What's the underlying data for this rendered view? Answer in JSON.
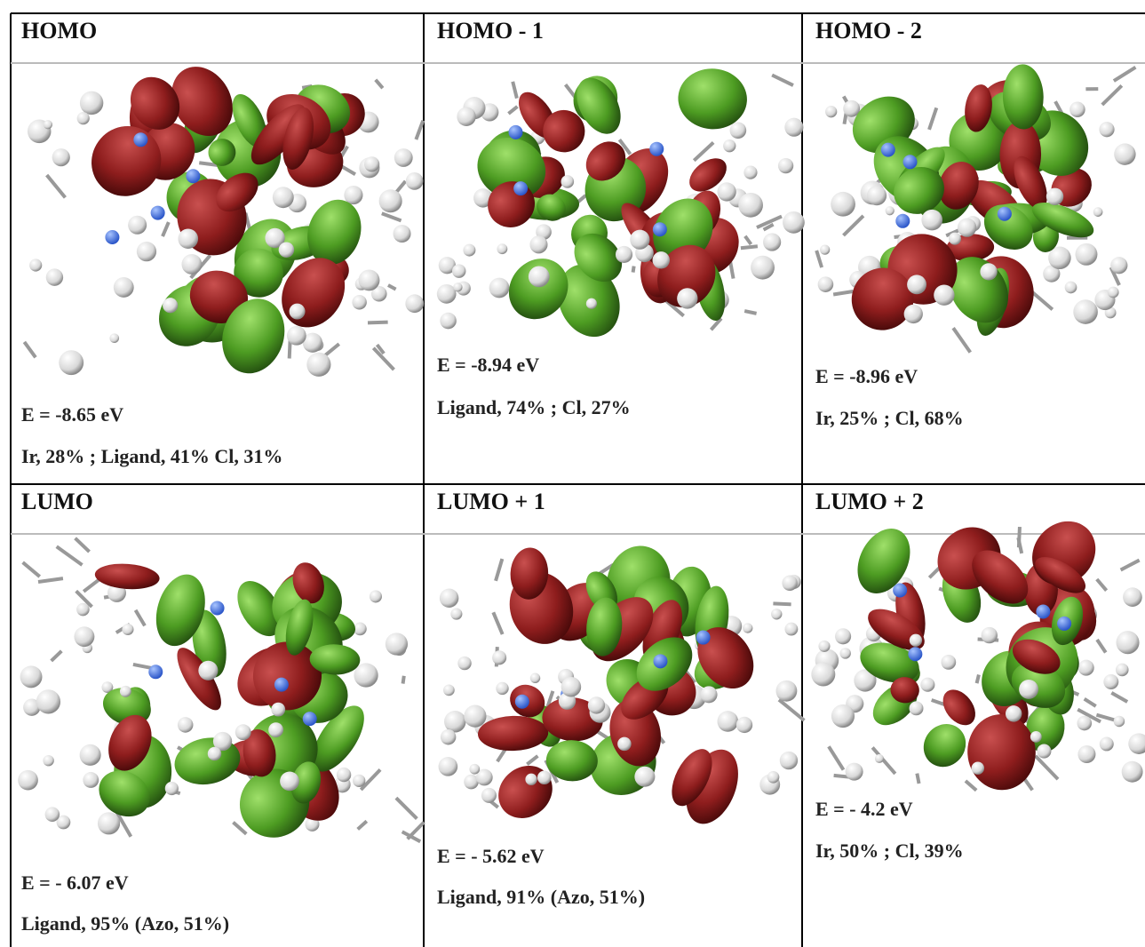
{
  "table": {
    "rows": [
      [
        {
          "header": "HOMO",
          "energy": "E = -8.65 eV",
          "composition": "Ir, 28% ; Ligand, 41%   Cl, 31%"
        },
        {
          "header": "HOMO - 1",
          "energy": "E = -8.94 eV",
          "composition": "Ligand, 74% ; Cl, 27%"
        },
        {
          "header": "HOMO - 2",
          "energy": "E = -8.96 eV",
          "composition": "Ir, 25% ; Cl, 68%"
        }
      ],
      [
        {
          "header": "LUMO",
          "energy": "E = - 6.07 eV",
          "composition": "Ligand, 95% (Azo, 51%)"
        },
        {
          "header": "LUMO + 1",
          "energy": "E = - 5.62 eV",
          "composition": "Ligand, 91% (Azo, 51%)"
        },
        {
          "header": "LUMO + 2",
          "energy": "E = - 4.2 eV",
          "composition": "Ir, 50% ;   Cl, 39%"
        }
      ]
    ]
  }
}
